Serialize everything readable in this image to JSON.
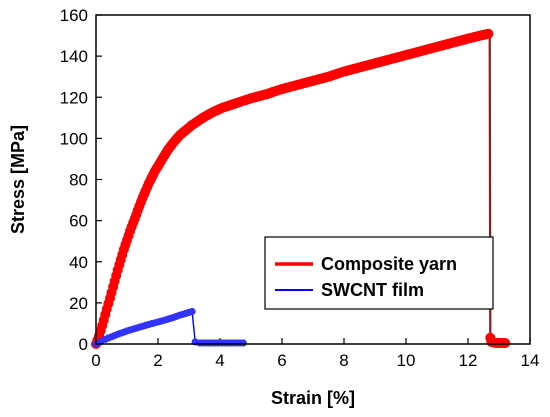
{
  "chart_data": {
    "type": "line",
    "title": "",
    "xlabel": "Strain [%]",
    "ylabel": "Stress [MPa]",
    "xlim": [
      0,
      14
    ],
    "ylim": [
      0,
      160
    ],
    "xticks": [
      0,
      2,
      4,
      6,
      8,
      10,
      12,
      14
    ],
    "yticks": [
      0,
      20,
      40,
      60,
      80,
      100,
      120,
      140,
      160
    ],
    "grid": false,
    "legend_position": "center-right",
    "series": [
      {
        "name": "Composite yarn",
        "line_color": "#8B1A1A",
        "marker_color": "#FF0000",
        "marker": "circle",
        "x": [
          0,
          0.1,
          0.2,
          0.35,
          0.5,
          0.7,
          0.9,
          1.1,
          1.3,
          1.5,
          1.7,
          1.9,
          2.1,
          2.3,
          2.5,
          2.7,
          2.9,
          3.1,
          3.3,
          3.5,
          3.8,
          4.1,
          4.5,
          5.0,
          5.5,
          6.0,
          6.5,
          7.0,
          7.5,
          8.0,
          8.5,
          9.0,
          9.5,
          10.0,
          10.5,
          11.0,
          11.5,
          12.0,
          12.4,
          12.7,
          12.72,
          12.75,
          12.9,
          13.05,
          13.2
        ],
        "y": [
          0,
          4,
          9,
          17,
          25,
          36,
          46,
          55,
          63,
          71,
          78,
          84,
          89,
          94,
          98,
          101.5,
          104,
          106.5,
          108.5,
          110.5,
          113,
          115,
          117,
          119.5,
          121.5,
          124,
          126,
          128,
          130,
          132.5,
          134.5,
          136.5,
          138.5,
          140.5,
          142.5,
          144.5,
          146.5,
          148.5,
          150,
          151,
          3,
          1,
          0.5,
          0.5,
          0.5
        ]
      },
      {
        "name": "SWCNT film",
        "line_color": "#0000FF",
        "marker_color": "#3333FF",
        "marker": "circle",
        "x": [
          0,
          0.15,
          0.3,
          0.5,
          0.7,
          0.9,
          1.1,
          1.3,
          1.5,
          1.7,
          1.9,
          2.1,
          2.3,
          2.5,
          2.7,
          2.9,
          3.1,
          3.2,
          3.35,
          3.55,
          3.75,
          3.95,
          4.15,
          4.35,
          4.55,
          4.75
        ],
        "y": [
          0,
          1,
          2.3,
          3.5,
          4.7,
          5.8,
          6.8,
          7.7,
          8.6,
          9.5,
          10.3,
          11.1,
          12,
          12.9,
          14,
          14.9,
          15.8,
          1,
          0.5,
          0.5,
          0.5,
          0.5,
          0.5,
          0.5,
          0.5,
          0.5
        ]
      }
    ]
  }
}
